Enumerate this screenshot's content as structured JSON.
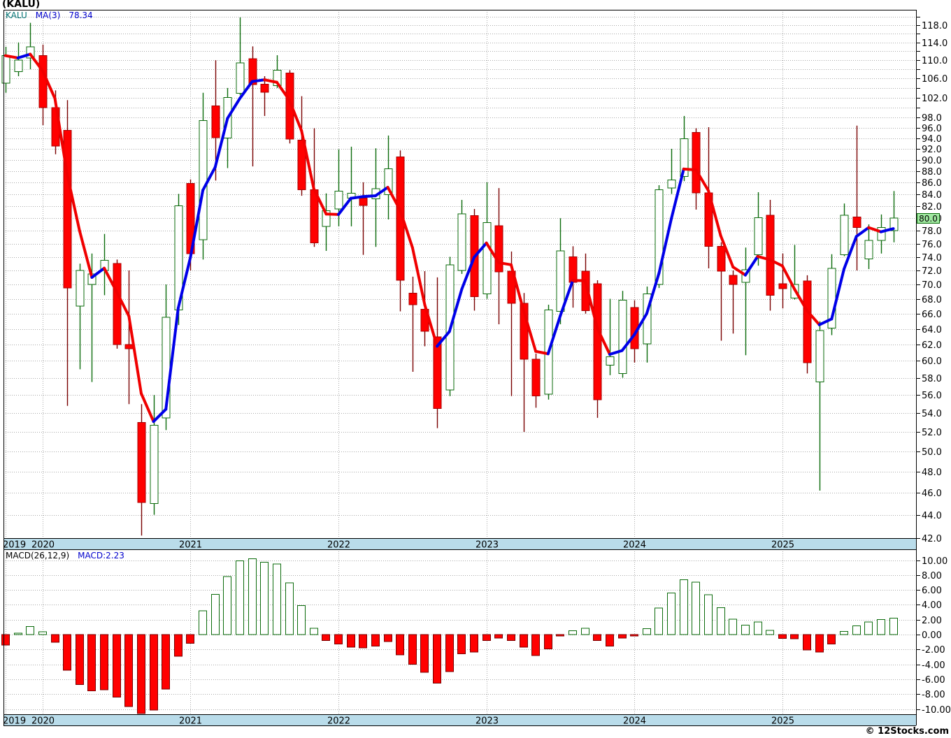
{
  "title": "(KALU)",
  "price_panel": {
    "legend": {
      "symbol": "KALU",
      "ma_label": "MA(3)",
      "ma_value": "78.34"
    },
    "last_price_tag": "80.0"
  },
  "macd_panel": {
    "legend": {
      "label": "MACD(26,12,9)",
      "value_label": "MACD:2.23"
    }
  },
  "copyright": "© 12Stocks.com",
  "colors": {
    "up_candle_stroke": "#0b6b0b",
    "up_candle_fill": "#ffffff",
    "down_candle_fill": "#ff0000",
    "down_candle_stroke": "#a80000",
    "down_wick": "#7a0000",
    "ma_rising": "#0000e8",
    "ma_falling": "#f00000",
    "grid": "#a9a9a9",
    "axis_strip": "#b9dcea",
    "tag_bg": "#9fe89f"
  },
  "chart_data": {
    "type": "candlestick-with-macd",
    "symbol": "KALU",
    "title": "(KALU)",
    "x_axis": {
      "years": [
        "2019",
        "2020",
        "2021",
        "2022",
        "2023",
        "2024",
        "2025"
      ]
    },
    "months": [
      "2019-10",
      "2019-11",
      "2019-12",
      "2020-01",
      "2020-02",
      "2020-03",
      "2020-04",
      "2020-05",
      "2020-06",
      "2020-07",
      "2020-08",
      "2020-09",
      "2020-10",
      "2020-11",
      "2020-12",
      "2021-01",
      "2021-02",
      "2021-03",
      "2021-04",
      "2021-05",
      "2021-06",
      "2021-07",
      "2021-08",
      "2021-09",
      "2021-10",
      "2021-11",
      "2021-12",
      "2022-01",
      "2022-02",
      "2022-03",
      "2022-04",
      "2022-05",
      "2022-06",
      "2022-07",
      "2022-08",
      "2022-09",
      "2022-10",
      "2022-11",
      "2022-12",
      "2023-01",
      "2023-02",
      "2023-03",
      "2023-04",
      "2023-05",
      "2023-06",
      "2023-07",
      "2023-08",
      "2023-09",
      "2023-10",
      "2023-11",
      "2023-12",
      "2024-01",
      "2024-02",
      "2024-03",
      "2024-04",
      "2024-05",
      "2024-06",
      "2024-07",
      "2024-08",
      "2024-09",
      "2024-10",
      "2024-11",
      "2024-12",
      "2025-01",
      "2025-02",
      "2025-03",
      "2025-04",
      "2025-05",
      "2025-06",
      "2025-07",
      "2025-08",
      "2025-09",
      "2025-10"
    ],
    "ohlc": [
      [
        105,
        113,
        103,
        111
      ],
      [
        107.5,
        114,
        106.5,
        110
      ],
      [
        110.5,
        118.6,
        108,
        113
      ],
      [
        111,
        113.5,
        96.5,
        100
      ],
      [
        100,
        103.5,
        91,
        92.5
      ],
      [
        95.5,
        101.5,
        54.8,
        69.5
      ],
      [
        67,
        73,
        59,
        72
      ],
      [
        70,
        74.5,
        57.5,
        71.5
      ],
      [
        72,
        77.5,
        68.5,
        73.5
      ],
      [
        73,
        73.6,
        61.5,
        62
      ],
      [
        62,
        72,
        55,
        61.5
      ],
      [
        53,
        55,
        42.2,
        45.1
      ],
      [
        45,
        56,
        44,
        52.7
      ],
      [
        53.5,
        70,
        52.2,
        65.5
      ],
      [
        66.5,
        84,
        64.5,
        82
      ],
      [
        85.8,
        86.5,
        72,
        74.5
      ],
      [
        76.6,
        103,
        73.6,
        97.4
      ],
      [
        100.3,
        110,
        86.3,
        94.1
      ],
      [
        94,
        104,
        88.5,
        102
      ],
      [
        102.9,
        119.9,
        102.5,
        109.4
      ],
      [
        110.3,
        113.1,
        88.8,
        104.7
      ],
      [
        104.8,
        106.5,
        98.3,
        103.1
      ],
      [
        104.5,
        111.1,
        104,
        107.8
      ],
      [
        107.2,
        107.8,
        93,
        93.8
      ],
      [
        93.6,
        102.3,
        83.7,
        84.7
      ],
      [
        84.7,
        95.9,
        75.5,
        76.1
      ],
      [
        78.7,
        84.1,
        74.9,
        81.2
      ],
      [
        81.5,
        91.9,
        78.7,
        84.5
      ],
      [
        83.3,
        92.4,
        78.7,
        84.1
      ],
      [
        83.3,
        86,
        74.3,
        82.1
      ],
      [
        83.2,
        92.1,
        75.5,
        84.9
      ],
      [
        83.9,
        94.5,
        79.8,
        88.4
      ],
      [
        90.5,
        91.7,
        66.3,
        70.6
      ],
      [
        68.8,
        71.1,
        58.7,
        67.2
      ],
      [
        66.6,
        71.9,
        61.8,
        63.7
      ],
      [
        63,
        71,
        52.4,
        54.5
      ],
      [
        56.6,
        74,
        55.9,
        72.8
      ],
      [
        72,
        83,
        71.5,
        80.7
      ],
      [
        80.4,
        81.5,
        66.4,
        68.3
      ],
      [
        68.7,
        86,
        68,
        79.3
      ],
      [
        78.8,
        85,
        64.6,
        71.8
      ],
      [
        71.9,
        74.8,
        55.9,
        67.4
      ],
      [
        67.4,
        68.8,
        52,
        60.2
      ],
      [
        60.2,
        60.9,
        54.6,
        55.9
      ],
      [
        56.1,
        67.2,
        55.5,
        66.5
      ],
      [
        66.3,
        80,
        64.6,
        74.9
      ],
      [
        74,
        75.6,
        66.8,
        70.3
      ],
      [
        71.9,
        74.5,
        66,
        66.4
      ],
      [
        70.1,
        70.6,
        53.5,
        55.5
      ],
      [
        59.5,
        68,
        58.3,
        60.5
      ],
      [
        58.5,
        69.1,
        58,
        67.8
      ],
      [
        66.8,
        67.8,
        59.8,
        61.5
      ],
      [
        62.1,
        69.7,
        59.8,
        68.7
      ],
      [
        70,
        85.5,
        69.5,
        84.7
      ],
      [
        85,
        92,
        84,
        86.4
      ],
      [
        87,
        98.3,
        86.2,
        93.9
      ],
      [
        95.1,
        95.9,
        81.4,
        84.2
      ],
      [
        84.2,
        96.1,
        72.3,
        75.6
      ],
      [
        75.6,
        76.2,
        62.5,
        71.9
      ],
      [
        71.3,
        72,
        63.4,
        70
      ],
      [
        70.3,
        75.4,
        60.7,
        72.1
      ],
      [
        74.3,
        84.3,
        72.7,
        80.1
      ],
      [
        80.5,
        83,
        66.4,
        68.5
      ],
      [
        70.1,
        74.5,
        66.7,
        69.4
      ],
      [
        68.1,
        75.8,
        67.9,
        70
      ],
      [
        70.5,
        71.3,
        58.5,
        59.8
      ],
      [
        57.5,
        65,
        46.2,
        63.8
      ],
      [
        64.1,
        74.4,
        63.2,
        72.3
      ],
      [
        74.3,
        82.4,
        74.1,
        80.5
      ],
      [
        80.2,
        96.4,
        72,
        78.5
      ],
      [
        73.7,
        79,
        72.2,
        76.5
      ],
      [
        76.5,
        80.6,
        74.5,
        78.5
      ],
      [
        78,
        84.5,
        76.2,
        80
      ]
    ],
    "macd_histogram": [
      -1.4,
      0.05,
      1.09,
      0.37,
      -1.03,
      -4.77,
      -6.7,
      -7.57,
      -7.41,
      -8.41,
      -9.66,
      -10.9,
      -10.12,
      -7.32,
      -2.9,
      -1.18,
      3.18,
      5.39,
      7.79,
      9.91,
      10.19,
      9.72,
      9.5,
      6.95,
      3.89,
      0.84,
      -0.78,
      -1.25,
      -1.71,
      -1.78,
      -1.56,
      -0.93,
      -2.74,
      -3.99,
      -5.08,
      -6.54,
      -4.98,
      -2.59,
      -2.34,
      -0.78,
      -0.47,
      -0.78,
      -1.71,
      -2.8,
      -1.93,
      -0.09,
      0.53,
      0.84,
      -0.78,
      -1.56,
      -0.47,
      -0.16,
      0.78,
      3.58,
      5.61,
      7.37,
      7.05,
      5.35,
      3.62,
      2.08,
      1.28,
      1.67,
      0.54,
      -0.5,
      -0.54,
      -2.08,
      -2.34,
      -1.28,
      0.42,
      1.19,
      1.7,
      2.02,
      2.23
    ],
    "overlays": [
      {
        "name": "MA(3)",
        "type": "sma",
        "window": 3,
        "last_value": 78.34
      }
    ],
    "price_axis": {
      "scale": "log",
      "labeled_ticks": [
        118,
        114,
        110,
        106,
        102,
        98,
        96,
        94,
        92,
        90,
        88,
        86,
        84,
        82,
        80,
        78,
        76,
        74,
        72,
        70,
        68,
        66,
        64,
        62,
        60,
        58,
        56,
        54,
        52,
        50,
        48,
        46,
        44,
        42
      ],
      "minor_ticks": [
        120,
        116,
        112,
        108,
        104,
        100
      ],
      "label_format": "one-decimal",
      "top_price": 121.5,
      "bottom_price": 42.0
    },
    "macd_axis": {
      "labeled_ticks": [
        10,
        8,
        6,
        4,
        2,
        0,
        -2,
        -4,
        -6,
        -8,
        -10
      ],
      "label_format": "two-decimal",
      "indicator": "MACD(26,12,9)",
      "last_value": 2.23
    },
    "last_close": 80.0,
    "grid": true,
    "legend_position": "top-left"
  }
}
